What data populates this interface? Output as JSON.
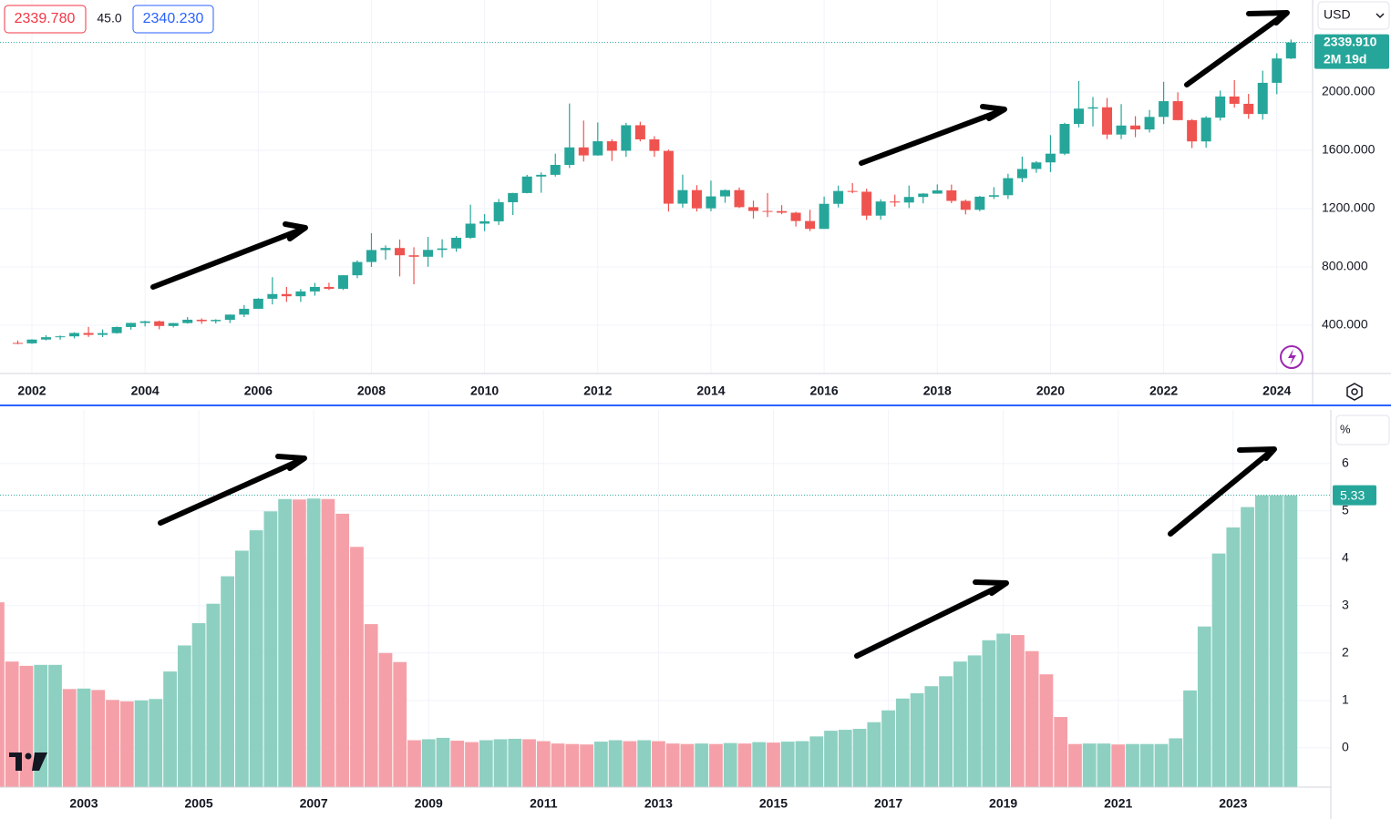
{
  "toolbar": {
    "sell": "2339.780",
    "spread": "45.0",
    "buy": "2340.230",
    "currency": "USD"
  },
  "chart_data": [
    {
      "type": "candlestick",
      "categories": [
        null,
        "2002",
        null,
        null,
        null,
        null,
        null,
        null,
        null,
        "2004",
        null,
        null,
        null,
        null,
        null,
        null,
        null,
        "2006",
        null,
        null,
        null,
        null,
        null,
        null,
        null,
        "2008",
        null,
        null,
        null,
        null,
        null,
        null,
        null,
        "2010",
        null,
        null,
        null,
        null,
        null,
        null,
        null,
        "2012",
        null,
        null,
        null,
        null,
        null,
        null,
        null,
        "2014",
        null,
        null,
        null,
        null,
        null,
        null,
        null,
        "2016",
        null,
        null,
        null,
        null,
        null,
        null,
        null,
        "2018",
        null,
        null,
        null,
        null,
        null,
        null,
        null,
        "2020",
        null,
        null,
        null,
        null,
        null,
        null,
        null,
        "2022",
        null,
        null,
        null,
        null,
        null,
        null,
        null,
        "2024",
        null
      ],
      "ohlc": [
        [
          279,
          296,
          270,
          276
        ],
        [
          276,
          304,
          272,
          302
        ],
        [
          302,
          332,
          296,
          318
        ],
        [
          318,
          330,
          301,
          324
        ],
        [
          324,
          352,
          310,
          347
        ],
        [
          347,
          389,
          320,
          334
        ],
        [
          334,
          371,
          319,
          346
        ],
        [
          346,
          391,
          342,
          388
        ],
        [
          388,
          417,
          370,
          416
        ],
        [
          416,
          431,
          392,
          427
        ],
        [
          427,
          432,
          372,
          395
        ],
        [
          395,
          416,
          385,
          415
        ],
        [
          415,
          456,
          411,
          438
        ],
        [
          438,
          447,
          410,
          428
        ],
        [
          428,
          441,
          412,
          437
        ],
        [
          437,
          474,
          415,
          473
        ],
        [
          473,
          539,
          456,
          513
        ],
        [
          513,
          586,
          512,
          582
        ],
        [
          582,
          730,
          543,
          614
        ],
        [
          614,
          663,
          560,
          599
        ],
        [
          599,
          648,
          560,
          632
        ],
        [
          632,
          691,
          603,
          663
        ],
        [
          663,
          692,
          642,
          650
        ],
        [
          650,
          744,
          642,
          743
        ],
        [
          743,
          845,
          723,
          834
        ],
        [
          834,
          1032,
          800,
          916
        ],
        [
          916,
          948,
          850,
          930
        ],
        [
          930,
          988,
          735,
          880
        ],
        [
          880,
          935,
          681,
          870
        ],
        [
          870,
          1006,
          801,
          917
        ],
        [
          917,
          990,
          865,
          927
        ],
        [
          927,
          1012,
          904,
          1000
        ],
        [
          1000,
          1227,
          993,
          1097
        ],
        [
          1097,
          1162,
          1045,
          1113
        ],
        [
          1113,
          1266,
          1088,
          1244
        ],
        [
          1244,
          1308,
          1156,
          1307
        ],
        [
          1307,
          1432,
          1305,
          1420
        ],
        [
          1420,
          1448,
          1309,
          1432
        ],
        [
          1432,
          1577,
          1420,
          1500
        ],
        [
          1500,
          1921,
          1478,
          1620
        ],
        [
          1620,
          1804,
          1523,
          1565
        ],
        [
          1565,
          1791,
          1563,
          1662
        ],
        [
          1662,
          1676,
          1527,
          1597
        ],
        [
          1597,
          1788,
          1555,
          1772
        ],
        [
          1772,
          1796,
          1661,
          1675
        ],
        [
          1675,
          1697,
          1555,
          1596
        ],
        [
          1596,
          1605,
          1180,
          1234
        ],
        [
          1234,
          1433,
          1207,
          1327
        ],
        [
          1327,
          1361,
          1180,
          1202
        ],
        [
          1202,
          1392,
          1182,
          1284
        ],
        [
          1284,
          1331,
          1240,
          1327
        ],
        [
          1327,
          1345,
          1204,
          1210
        ],
        [
          1210,
          1255,
          1132,
          1184
        ],
        [
          1184,
          1307,
          1142,
          1183
        ],
        [
          1183,
          1224,
          1162,
          1172
        ],
        [
          1172,
          1178,
          1077,
          1115
        ],
        [
          1115,
          1192,
          1046,
          1061
        ],
        [
          1061,
          1283,
          1061,
          1233
        ],
        [
          1233,
          1358,
          1208,
          1321
        ],
        [
          1321,
          1375,
          1306,
          1316
        ],
        [
          1316,
          1337,
          1123,
          1152
        ],
        [
          1152,
          1264,
          1124,
          1249
        ],
        [
          1249,
          1296,
          1214,
          1242
        ],
        [
          1242,
          1358,
          1204,
          1280
        ],
        [
          1280,
          1306,
          1236,
          1303
        ],
        [
          1303,
          1366,
          1302,
          1325
        ],
        [
          1325,
          1365,
          1238,
          1253
        ],
        [
          1253,
          1262,
          1160,
          1192
        ],
        [
          1192,
          1287,
          1182,
          1282
        ],
        [
          1282,
          1347,
          1266,
          1292
        ],
        [
          1292,
          1439,
          1266,
          1409
        ],
        [
          1409,
          1557,
          1381,
          1472
        ],
        [
          1472,
          1526,
          1446,
          1517
        ],
        [
          1517,
          1704,
          1451,
          1577
        ],
        [
          1577,
          1789,
          1567,
          1781
        ],
        [
          1781,
          2075,
          1757,
          1886
        ],
        [
          1886,
          1966,
          1764,
          1895
        ],
        [
          1895,
          1959,
          1677,
          1708
        ],
        [
          1708,
          1917,
          1677,
          1770
        ],
        [
          1770,
          1834,
          1690,
          1743
        ],
        [
          1743,
          1877,
          1722,
          1829
        ],
        [
          1829,
          2070,
          1780,
          1937
        ],
        [
          1937,
          1998,
          1805,
          1807
        ],
        [
          1807,
          1814,
          1615,
          1661
        ],
        [
          1661,
          1834,
          1618,
          1824
        ],
        [
          1824,
          2010,
          1804,
          1969
        ],
        [
          1969,
          2082,
          1893,
          1919
        ],
        [
          1919,
          1987,
          1816,
          1849
        ],
        [
          1849,
          2146,
          1810,
          2063
        ],
        [
          2063,
          2265,
          1985,
          2230
        ],
        [
          2230,
          2360,
          2226,
          2339.91
        ]
      ],
      "up_color": "#26a69a",
      "down_color": "#ef5350",
      "ylim": [
        69,
        2631
      ],
      "yticks": [
        {
          "value": 400,
          "label": "400.000"
        },
        {
          "value": 800,
          "label": "800.000"
        },
        {
          "value": 1200,
          "label": "1200.000"
        },
        {
          "value": 1600,
          "label": "1600.000"
        },
        {
          "value": 2000,
          "label": "2000.000"
        }
      ],
      "last_value_label": "2339.910",
      "countdown": "2M 19d",
      "grid": true
    },
    {
      "type": "bar",
      "categories": [
        null,
        null,
        null,
        null,
        null,
        null,
        "2003",
        null,
        null,
        null,
        null,
        null,
        null,
        null,
        "2005",
        null,
        null,
        null,
        null,
        null,
        null,
        null,
        "2007",
        null,
        null,
        null,
        null,
        null,
        null,
        null,
        "2009",
        null,
        null,
        null,
        null,
        null,
        null,
        null,
        "2011",
        null,
        null,
        null,
        null,
        null,
        null,
        null,
        "2013",
        null,
        null,
        null,
        null,
        null,
        null,
        null,
        "2015",
        null,
        null,
        null,
        null,
        null,
        null,
        null,
        "2017",
        null,
        null,
        null,
        null,
        null,
        null,
        null,
        "2019",
        null,
        null,
        null,
        null,
        null,
        null,
        null,
        "2021",
        null,
        null,
        null,
        null,
        null,
        null,
        null,
        "2023",
        null,
        null,
        null,
        null
      ],
      "values": [
        3.07,
        1.82,
        1.73,
        1.75,
        1.75,
        1.24,
        1.25,
        1.22,
        1.01,
        0.98,
        1.0,
        1.03,
        1.61,
        2.16,
        2.63,
        3.04,
        3.62,
        4.16,
        4.59,
        4.99,
        5.25,
        5.24,
        5.26,
        5.25,
        4.94,
        4.24,
        2.61,
        2.0,
        1.81,
        0.16,
        0.18,
        0.21,
        0.15,
        0.12,
        0.16,
        0.18,
        0.19,
        0.18,
        0.14,
        0.09,
        0.08,
        0.07,
        0.13,
        0.16,
        0.14,
        0.16,
        0.14,
        0.09,
        0.08,
        0.09,
        0.08,
        0.1,
        0.09,
        0.12,
        0.11,
        0.13,
        0.14,
        0.24,
        0.36,
        0.38,
        0.4,
        0.54,
        0.79,
        1.04,
        1.15,
        1.3,
        1.51,
        1.82,
        1.95,
        2.27,
        2.41,
        2.38,
        2.04,
        1.55,
        0.65,
        0.08,
        0.09,
        0.09,
        0.07,
        0.08,
        0.08,
        0.08,
        0.2,
        1.21,
        2.56,
        4.1,
        4.65,
        5.08,
        5.33,
        5.33,
        5.33
      ],
      "up_color": "#8dd0c1",
      "down_color": "#f5a0a8",
      "ylim": [
        -0.83,
        7.13
      ],
      "yticks": [
        0,
        1,
        2,
        3,
        4,
        5,
        6
      ],
      "unit": "%",
      "grid": true
    }
  ]
}
